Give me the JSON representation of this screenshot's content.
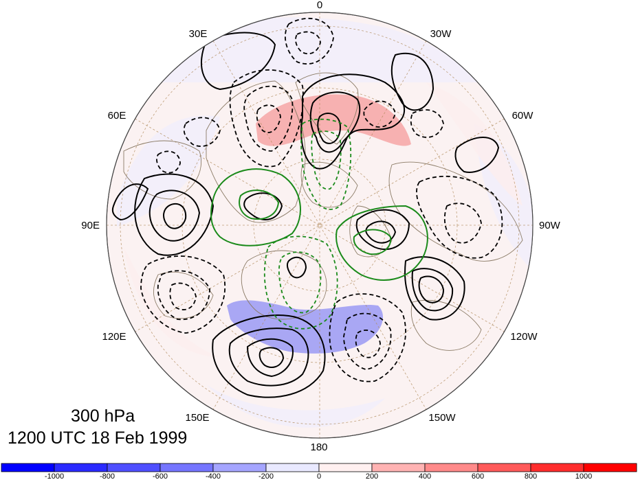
{
  "title": {
    "level": "300 hPa",
    "time": "1200 UTC 18 Feb 1999"
  },
  "longitude_labels": {
    "0": "0",
    "30w": "30W",
    "60w": "60W",
    "90w": "90W",
    "120w": "120W",
    "150w": "150W",
    "180": "180",
    "150e": "150E",
    "120e": "120E",
    "90e": "90E",
    "60e": "60E",
    "30e": "30E"
  },
  "colorbar": {
    "labels": [
      "-1000",
      "-800",
      "-600",
      "-400",
      "-200",
      "0",
      "200",
      "400",
      "600",
      "800",
      "1000"
    ],
    "colors": [
      "#0000ff",
      "#2a2aff",
      "#4f4fff",
      "#7575ff",
      "#a5a5ff",
      "#e9e9ff",
      "#fff0f0",
      "#ffb3b3",
      "#ff8a8a",
      "#ff5a5a",
      "#ff2d2d",
      "#ff0000"
    ]
  },
  "map": {
    "projection": "north polar stereographic",
    "background_color": "#ffffff",
    "disk_tint_positive": "#fdeeee",
    "disk_tint_negative": "#eeeeff",
    "contour_color_main": "#000000",
    "contour_color_secondary": "#008000",
    "coastline_color": "#8b7b66"
  }
}
